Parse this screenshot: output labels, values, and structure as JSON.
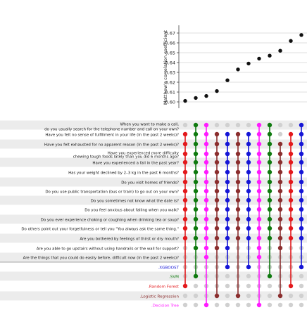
{
  "chart_data": {
    "type": "scatter",
    "top_panel": {
      "ylabel": "Matthew's correlation coefficient",
      "ylim": [
        0.595,
        0.675
      ],
      "yticks": [
        "0.60",
        "0.61",
        "0.62",
        "0.63",
        "0.64",
        "0.65",
        "0.66",
        "0.67"
      ],
      "ytick_values": [
        0.6,
        0.61,
        0.62,
        0.63,
        0.64,
        0.65,
        0.66,
        0.67
      ],
      "points": [
        0.601,
        0.604,
        0.606,
        0.611,
        0.622,
        0.633,
        0.639,
        0.644,
        0.647,
        0.652,
        0.662,
        0.668
      ]
    },
    "features": [
      "When you want to make a call,",
      "do you usually search for the telephone number and call on your own?",
      "Have you felt no sense of fulfillment in your life (In the past 2 weeks)?",
      "Have you felt exhausted for no apparent reason (In the past 2 weeks)?",
      "Have you experienced more difficulty",
      "chewing tough foods lately than you did 6 months ago?",
      "Have you experienced a fall in the past year?",
      "Has your weight declined by 2–3 kg in the past 6 months?",
      "Do you visit homes of friends?",
      "Do you use public transportation (bus or train) to go out on your own?",
      "Do you sometimes not know what the date is?",
      "Do you feel anxious about falling when you walk?",
      "Do you ever experience choking or coughing when drinking tea or soup?",
      "Do others point out your forgetfulness or tell you \"You always ask the same thing.\"",
      "Are you bothered by feelings of thirst or dry mouth?",
      "Are you able to go upstairs without using handrails or the wall for support?",
      "Are the things that you could do easily before, difficult now (In the past 2 weeks)?"
    ],
    "models": [
      {
        "name": ".XGBOOST",
        "color": "#1515d6"
      },
      {
        "name": ".SVM",
        "color": "#0f7a0f"
      },
      {
        "name": ".Random Forest",
        "color": "#e3191c"
      },
      {
        "name": ".Logistic Regression",
        "color": "#8b2e2e"
      },
      {
        "name": ".Decision Tree",
        "color": "#ff1aff"
      }
    ],
    "combinations": [
      {
        "model": 2,
        "features": [
          2,
          3,
          4,
          5,
          6,
          7,
          8,
          9,
          10,
          11,
          12,
          13,
          14
        ]
      },
      {
        "model": 1,
        "features": [
          0,
          1,
          2,
          3,
          4,
          5,
          6,
          7,
          8,
          9,
          10,
          11,
          12,
          13,
          14,
          15
        ]
      },
      {
        "model": 4,
        "features": [
          1,
          2,
          3,
          4,
          5,
          6,
          7,
          8,
          9,
          10,
          11,
          12,
          13,
          14,
          15,
          16
        ]
      },
      {
        "model": 3,
        "features": [
          2,
          3,
          4,
          5,
          6,
          7,
          8,
          9,
          10,
          11,
          12,
          13,
          14,
          15
        ]
      },
      {
        "model": 0,
        "features": [
          2,
          3,
          4,
          5,
          6,
          7,
          8,
          9,
          10,
          11,
          12,
          13,
          14,
          15
        ]
      },
      {
        "model": 3,
        "features": [
          2,
          3,
          4,
          5,
          6,
          7,
          8,
          9,
          10,
          11,
          12,
          13,
          14
        ]
      },
      {
        "model": 0,
        "features": [
          2,
          3,
          4,
          5,
          6,
          7,
          8,
          9,
          10,
          11,
          12,
          13,
          14
        ]
      },
      {
        "model": 4,
        "features": [
          0,
          1,
          2,
          3,
          4,
          5,
          6,
          7,
          8,
          9,
          10,
          11,
          12,
          13,
          14,
          15,
          16
        ]
      },
      {
        "model": 1,
        "features": [
          0,
          1,
          2,
          3,
          4,
          5,
          6,
          7,
          8,
          9,
          10,
          11,
          12,
          13,
          14
        ]
      },
      {
        "model": 3,
        "features": [
          3,
          4,
          5,
          6,
          7,
          8,
          9,
          10,
          11,
          12,
          13,
          14,
          15
        ]
      },
      {
        "model": 2,
        "features": [
          2,
          3,
          4,
          5,
          6,
          7,
          8,
          9,
          10,
          11,
          12,
          13,
          14
        ]
      },
      {
        "model": 0,
        "features": [
          0,
          1,
          2,
          3,
          4,
          5,
          6,
          7,
          8,
          9,
          10,
          11,
          12,
          13,
          14
        ]
      }
    ],
    "colors": {
      "inactive_dot": "#d0d0d0",
      "stripe": "#ececec",
      "grid": "#d4d4d4"
    }
  }
}
